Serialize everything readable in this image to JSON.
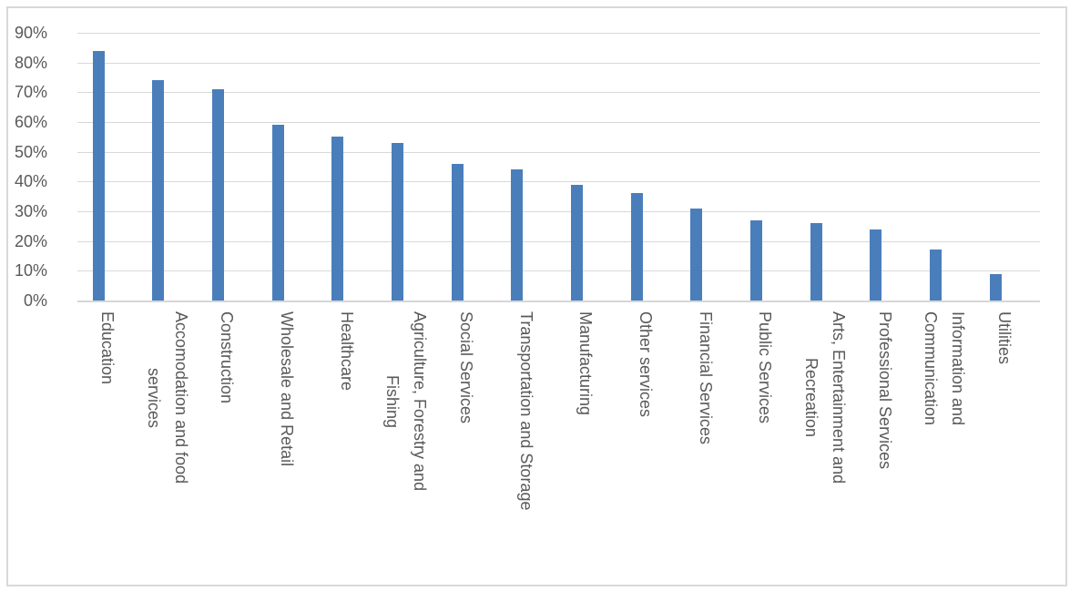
{
  "chart_data": {
    "type": "bar",
    "title": "",
    "xlabel": "",
    "ylabel": "",
    "categories": [
      "Education",
      "Accomodation and food\nservices",
      "Construction",
      "Wholesale and Retail",
      "Healthcare",
      "Agriculture, Forestry and\nFishing",
      "Social Services",
      "Transportation and Storage",
      "Manufacturing",
      "Other services",
      "Financial Services",
      "Public Services",
      "Arts, Entertainment and\nRecreation",
      "Professional Services",
      "Information and\nCommunication",
      "Utilities"
    ],
    "values": [
      84,
      74,
      71,
      59,
      55,
      53,
      46,
      44,
      39,
      36,
      31,
      27,
      26,
      24,
      17,
      9
    ],
    "unit": "%",
    "ylim": [
      0,
      90
    ],
    "ytick_step": 10,
    "ytick_labels": [
      "0%",
      "10%",
      "20%",
      "30%",
      "40%",
      "50%",
      "60%",
      "70%",
      "80%",
      "90%"
    ],
    "grid": true,
    "legend": "none",
    "colors": {
      "bar": "#4A7EBB",
      "gridline": "#D9D9D9",
      "axis_line": "#D6D6D6",
      "tick_text": "#595959",
      "background": "#FFFFFF",
      "frame_border": "#D9D9D9"
    }
  }
}
